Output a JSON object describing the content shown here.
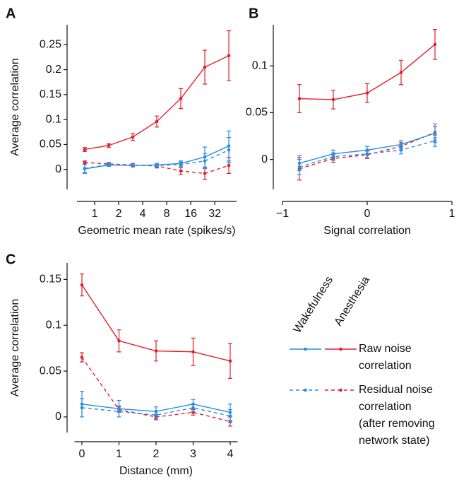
{
  "chart_data": [
    {
      "type": "line",
      "label": "A",
      "ylabel": "Average correlation",
      "xlabel": "Geometric mean rate (spikes/s)",
      "xscale": "log",
      "x": [
        0.75,
        1.5,
        3,
        6,
        12,
        24,
        48
      ],
      "xlim": [
        0.6,
        60
      ],
      "xticks": [
        1,
        2,
        4,
        8,
        16,
        32
      ],
      "ylim": [
        -0.04,
        0.29
      ],
      "yticks": [
        0,
        0.05,
        0.1,
        0.15,
        0.2,
        0.25
      ],
      "series": [
        {
          "color": "#e0202a",
          "dash": false,
          "values": [
            0.04,
            0.048,
            0.065,
            0.096,
            0.142,
            0.205,
            0.228
          ],
          "errors": [
            0.004,
            0.004,
            0.007,
            0.011,
            0.02,
            0.034,
            0.05
          ]
        },
        {
          "color": "#e0202a",
          "dash": true,
          "values": [
            0.014,
            0.011,
            0.009,
            0.007,
            -0.003,
            -0.008,
            0.008
          ],
          "errors": [
            0.003,
            0.003,
            0.003,
            0.004,
            0.007,
            0.012,
            0.016
          ]
        },
        {
          "color": "#2a8ee0",
          "dash": false,
          "values": [
            0.001,
            0.009,
            0.008,
            0.009,
            0.012,
            0.025,
            0.047
          ],
          "errors": [
            0.009,
            0.003,
            0.003,
            0.003,
            0.005,
            0.02,
            0.03
          ]
        },
        {
          "color": "#2a8ee0",
          "dash": true,
          "values": [
            0.002,
            0.01,
            0.008,
            0.008,
            0.01,
            0.017,
            0.039
          ],
          "errors": [
            0.008,
            0.003,
            0.003,
            0.003,
            0.005,
            0.015,
            0.025
          ]
        }
      ]
    },
    {
      "type": "line",
      "label": "B",
      "xlabel": "Signal correlation",
      "x": [
        -0.8,
        -0.4,
        0,
        0.4,
        0.8
      ],
      "xlim": [
        -1,
        1
      ],
      "xticks": [
        {
          "value": -1,
          "label": "−1"
        },
        0,
        1
      ],
      "ylim": [
        -0.032,
        0.144
      ],
      "yticks": [
        0,
        0.05,
        0.1
      ],
      "series": [
        {
          "color": "#e0202a",
          "dash": false,
          "values": [
            0.065,
            0.064,
            0.071,
            0.093,
            0.123
          ],
          "errors": [
            0.015,
            0.01,
            0.01,
            0.013,
            0.016
          ]
        },
        {
          "color": "#e0202a",
          "dash": true,
          "values": [
            -0.01,
            0.001,
            0.005,
            0.014,
            0.029
          ],
          "errors": [
            0.012,
            0.004,
            0.004,
            0.004,
            0.006
          ]
        },
        {
          "color": "#2a8ee0",
          "dash": false,
          "values": [
            -0.004,
            0.006,
            0.01,
            0.016,
            0.028
          ],
          "errors": [
            0.008,
            0.004,
            0.004,
            0.004,
            0.01
          ]
        },
        {
          "color": "#2a8ee0",
          "dash": true,
          "values": [
            -0.008,
            0.003,
            0.006,
            0.01,
            0.02
          ],
          "errors": [
            0.008,
            0.004,
            0.004,
            0.004,
            0.006
          ]
        }
      ]
    },
    {
      "type": "line",
      "label": "C",
      "ylabel": "Average correlation",
      "xlabel": "Distance (mm)",
      "x": [
        0,
        1,
        2,
        3,
        4
      ],
      "xlim": [
        -0.2,
        4.2
      ],
      "xticks": [
        0,
        1,
        2,
        3,
        4
      ],
      "ylim": [
        -0.017,
        0.168
      ],
      "yticks": [
        0,
        0.05,
        0.1,
        0.15
      ],
      "series": [
        {
          "color": "#e0202a",
          "dash": false,
          "values": [
            0.144,
            0.083,
            0.072,
            0.071,
            0.061
          ],
          "errors": [
            0.012,
            0.012,
            0.011,
            0.015,
            0.019
          ]
        },
        {
          "color": "#e0202a",
          "dash": true,
          "values": [
            0.065,
            0.008,
            0.0,
            0.005,
            -0.005
          ],
          "errors": [
            0.005,
            0.003,
            0.003,
            0.003,
            0.005
          ]
        },
        {
          "color": "#2a8ee0",
          "dash": false,
          "values": [
            0.014,
            0.009,
            0.006,
            0.014,
            0.005
          ],
          "errors": [
            0.014,
            0.009,
            0.005,
            0.005,
            0.009
          ]
        },
        {
          "color": "#2a8ee0",
          "dash": true,
          "values": [
            0.01,
            0.006,
            0.002,
            0.01,
            0.001
          ],
          "errors": [
            0.01,
            0.006,
            0.004,
            0.004,
            0.007
          ]
        }
      ]
    }
  ],
  "legend": {
    "columns": [
      "Wakefulness",
      "Anesthesia"
    ],
    "colors": [
      "#2a8ee0",
      "#e0202a"
    ],
    "rows": [
      {
        "dash": false,
        "lines": [
          "Raw noise",
          "correlation"
        ]
      },
      {
        "dash": true,
        "lines": [
          "Residual noise",
          "correlation",
          "(after removing",
          "network state)"
        ]
      }
    ]
  }
}
